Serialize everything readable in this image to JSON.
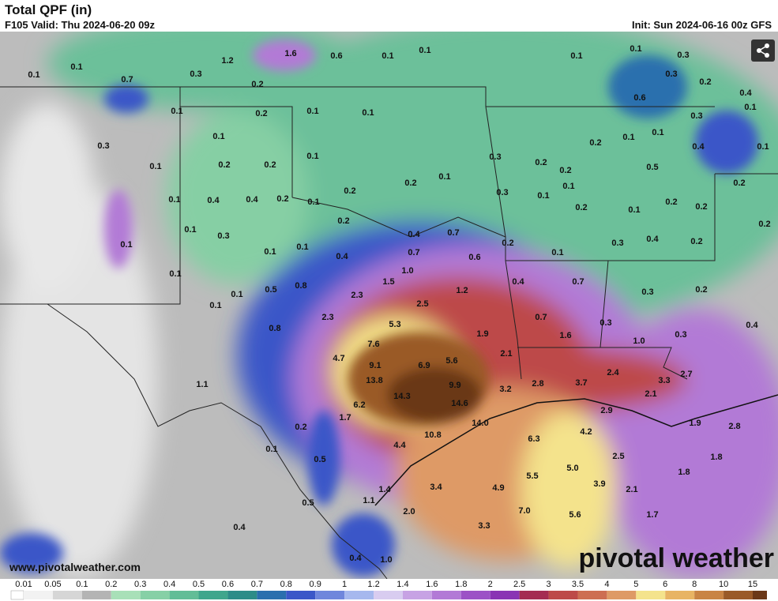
{
  "header": {
    "title": "Total QPF (in)",
    "valid": "F105 Valid: Thu 2024-06-20 09z",
    "init": "Init: Sun 2024-06-16 00z GFS"
  },
  "map": {
    "labels": [
      "0.1",
      "0.1",
      "0.7",
      "0.3",
      "1.2",
      "0.2",
      "1.6",
      "0.6",
      "0.1",
      "0.1",
      "0.1",
      "0.1",
      "0.3",
      "0.3",
      "0.2",
      "0.4",
      "0.6",
      "0.1",
      "0.3",
      "0.1",
      "0.4",
      "0.1",
      "0.2",
      "0.1",
      "0.1",
      "0.3",
      "0.1",
      "0.1",
      "0.2",
      "0.2",
      "0.1",
      "0.3",
      "0.2",
      "0.2",
      "0.2",
      "0.1",
      "0.1",
      "0.5",
      "0.2",
      "0.1",
      "0.2",
      "0.1",
      "0.1",
      "0.4",
      "0.4",
      "0.2",
      "0.1",
      "0.2",
      "0.3",
      "0.1",
      "0.2",
      "0.1",
      "0.2",
      "0.2",
      "0.2",
      "0.1",
      "0.3",
      "0.4",
      "0.7",
      "0.2",
      "0.3",
      "0.4",
      "0.2",
      "0.2",
      "0.1",
      "0.1",
      "0.1",
      "0.4",
      "0.7",
      "0.6",
      "0.1",
      "0.1",
      "0.8",
      "1.0",
      "0.5",
      "1.5",
      "1.2",
      "0.4",
      "0.7",
      "0.3",
      "0.2",
      "0.1",
      "0.1",
      "2.3",
      "2.5",
      "0.8",
      "2.3",
      "5.3",
      "0.7",
      "0.3",
      "0.4",
      "1.9",
      "1.6",
      "0.3",
      "1.0",
      "7.6",
      "4.7",
      "9.1",
      "6.9",
      "5.6",
      "2.1",
      "13.8",
      "2.4",
      "2.7",
      "9.9",
      "1.1",
      "3.2",
      "2.8",
      "3.7",
      "3.3",
      "14.3",
      "2.1",
      "6.2",
      "14.6",
      "2.9",
      "1.7",
      "14.0",
      "0.2",
      "1.9",
      "2.8",
      "4.2",
      "10.8",
      "6.3",
      "0.1",
      "4.4",
      "2.5",
      "1.8",
      "0.5",
      "5.0",
      "1.8",
      "5.5",
      "3.4",
      "4.9",
      "3.9",
      "2.1",
      "1.4",
      "1.1",
      "0.5",
      "7.0",
      "2.0",
      "1.7",
      "5.6",
      "0.4",
      "3.3",
      "0.4",
      "1.0"
    ]
  },
  "colorbar": {
    "labels": [
      "0.01",
      "0.05",
      "0.1",
      "0.2",
      "0.3",
      "0.4",
      "0.5",
      "0.6",
      "0.7",
      "0.8",
      "0.9",
      "1",
      "1.2",
      "1.4",
      "1.6",
      "1.8",
      "2",
      "2.5",
      "3",
      "3.5",
      "4",
      "5",
      "6",
      "8",
      "10",
      "15"
    ],
    "colors": [
      "#f2f2f2",
      "#d6d6d6",
      "#b4b4b4",
      "#a8e0b8",
      "#86d0a6",
      "#62bd97",
      "#3fa68c",
      "#2d8c88",
      "#2a6fae",
      "#3b57c8",
      "#6f86dc",
      "#a6b8ee",
      "#d8ccf0",
      "#c7a2e4",
      "#b27ad6",
      "#9c52c6",
      "#8a34b4",
      "#a42c52",
      "#bd4a48",
      "#cd6e52",
      "#de9a66",
      "#f4e38c",
      "#e8b464",
      "#c98444",
      "#9a5a28",
      "#6b3818"
    ]
  },
  "footer": {
    "website": "www.pivotalweather.com",
    "logo": "pivotal weather"
  }
}
